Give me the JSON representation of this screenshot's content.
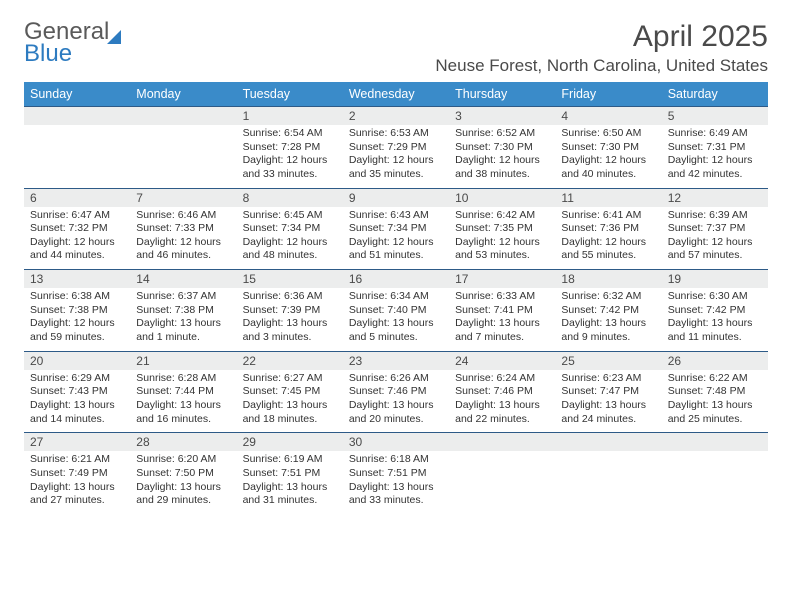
{
  "brand": {
    "line1": "General",
    "line2": "Blue",
    "line1_color": "#5a5a5a",
    "line2_color": "#2d7bc0",
    "triangle_color": "#2d7bc0"
  },
  "title": "April 2025",
  "location": "Neuse Forest, North Carolina, United States",
  "colors": {
    "header_bg": "#3a8bc9",
    "header_text": "#ffffff",
    "week_border": "#2d5a87",
    "daynum_bg": "#eceded",
    "text": "#4a4a4a",
    "body_text": "#333333",
    "page_bg": "#ffffff"
  },
  "day_labels": [
    "Sunday",
    "Monday",
    "Tuesday",
    "Wednesday",
    "Thursday",
    "Friday",
    "Saturday"
  ],
  "label_sunrise": "Sunrise:",
  "label_sunset": "Sunset:",
  "label_daylight": "Daylight:",
  "weeks": [
    [
      {
        "n": "",
        "empty": true
      },
      {
        "n": "",
        "empty": true
      },
      {
        "n": "1",
        "sr": "6:54 AM",
        "ss": "7:28 PM",
        "dl": "12 hours and 33 minutes."
      },
      {
        "n": "2",
        "sr": "6:53 AM",
        "ss": "7:29 PM",
        "dl": "12 hours and 35 minutes."
      },
      {
        "n": "3",
        "sr": "6:52 AM",
        "ss": "7:30 PM",
        "dl": "12 hours and 38 minutes."
      },
      {
        "n": "4",
        "sr": "6:50 AM",
        "ss": "7:30 PM",
        "dl": "12 hours and 40 minutes."
      },
      {
        "n": "5",
        "sr": "6:49 AM",
        "ss": "7:31 PM",
        "dl": "12 hours and 42 minutes."
      }
    ],
    [
      {
        "n": "6",
        "sr": "6:47 AM",
        "ss": "7:32 PM",
        "dl": "12 hours and 44 minutes."
      },
      {
        "n": "7",
        "sr": "6:46 AM",
        "ss": "7:33 PM",
        "dl": "12 hours and 46 minutes."
      },
      {
        "n": "8",
        "sr": "6:45 AM",
        "ss": "7:34 PM",
        "dl": "12 hours and 48 minutes."
      },
      {
        "n": "9",
        "sr": "6:43 AM",
        "ss": "7:34 PM",
        "dl": "12 hours and 51 minutes."
      },
      {
        "n": "10",
        "sr": "6:42 AM",
        "ss": "7:35 PM",
        "dl": "12 hours and 53 minutes."
      },
      {
        "n": "11",
        "sr": "6:41 AM",
        "ss": "7:36 PM",
        "dl": "12 hours and 55 minutes."
      },
      {
        "n": "12",
        "sr": "6:39 AM",
        "ss": "7:37 PM",
        "dl": "12 hours and 57 minutes."
      }
    ],
    [
      {
        "n": "13",
        "sr": "6:38 AM",
        "ss": "7:38 PM",
        "dl": "12 hours and 59 minutes."
      },
      {
        "n": "14",
        "sr": "6:37 AM",
        "ss": "7:38 PM",
        "dl": "13 hours and 1 minute."
      },
      {
        "n": "15",
        "sr": "6:36 AM",
        "ss": "7:39 PM",
        "dl": "13 hours and 3 minutes."
      },
      {
        "n": "16",
        "sr": "6:34 AM",
        "ss": "7:40 PM",
        "dl": "13 hours and 5 minutes."
      },
      {
        "n": "17",
        "sr": "6:33 AM",
        "ss": "7:41 PM",
        "dl": "13 hours and 7 minutes."
      },
      {
        "n": "18",
        "sr": "6:32 AM",
        "ss": "7:42 PM",
        "dl": "13 hours and 9 minutes."
      },
      {
        "n": "19",
        "sr": "6:30 AM",
        "ss": "7:42 PM",
        "dl": "13 hours and 11 minutes."
      }
    ],
    [
      {
        "n": "20",
        "sr": "6:29 AM",
        "ss": "7:43 PM",
        "dl": "13 hours and 14 minutes."
      },
      {
        "n": "21",
        "sr": "6:28 AM",
        "ss": "7:44 PM",
        "dl": "13 hours and 16 minutes."
      },
      {
        "n": "22",
        "sr": "6:27 AM",
        "ss": "7:45 PM",
        "dl": "13 hours and 18 minutes."
      },
      {
        "n": "23",
        "sr": "6:26 AM",
        "ss": "7:46 PM",
        "dl": "13 hours and 20 minutes."
      },
      {
        "n": "24",
        "sr": "6:24 AM",
        "ss": "7:46 PM",
        "dl": "13 hours and 22 minutes."
      },
      {
        "n": "25",
        "sr": "6:23 AM",
        "ss": "7:47 PM",
        "dl": "13 hours and 24 minutes."
      },
      {
        "n": "26",
        "sr": "6:22 AM",
        "ss": "7:48 PM",
        "dl": "13 hours and 25 minutes."
      }
    ],
    [
      {
        "n": "27",
        "sr": "6:21 AM",
        "ss": "7:49 PM",
        "dl": "13 hours and 27 minutes."
      },
      {
        "n": "28",
        "sr": "6:20 AM",
        "ss": "7:50 PM",
        "dl": "13 hours and 29 minutes."
      },
      {
        "n": "29",
        "sr": "6:19 AM",
        "ss": "7:51 PM",
        "dl": "13 hours and 31 minutes."
      },
      {
        "n": "30",
        "sr": "6:18 AM",
        "ss": "7:51 PM",
        "dl": "13 hours and 33 minutes."
      },
      {
        "n": "",
        "empty": true
      },
      {
        "n": "",
        "empty": true
      },
      {
        "n": "",
        "empty": true
      }
    ]
  ]
}
